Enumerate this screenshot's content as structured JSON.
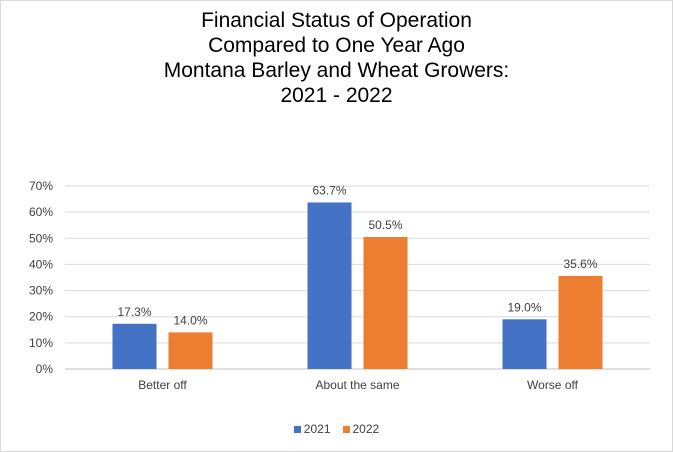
{
  "chart_data": {
    "type": "bar",
    "title_lines": [
      "Financial Status of Operation",
      "Compared to One Year Ago",
      "Montana Barley and Wheat Growers:",
      "2021 - 2022"
    ],
    "categories": [
      "Better off",
      "About the same",
      "Worse off"
    ],
    "series": [
      {
        "name": "2021",
        "color": "#4472c4",
        "values": [
          17.3,
          63.7,
          19.0
        ],
        "labels": [
          "17.3%",
          "63.7%",
          "19.0%"
        ]
      },
      {
        "name": "2022",
        "color": "#ed7d31",
        "values": [
          14.0,
          50.5,
          35.6
        ],
        "labels": [
          "14.0%",
          "50.5%",
          "35.6%"
        ]
      }
    ],
    "y_ticks": [
      "0%",
      "10%",
      "20%",
      "30%",
      "40%",
      "50%",
      "60%",
      "70%"
    ],
    "ylim": [
      0,
      70
    ],
    "grid": true,
    "legend_position": "bottom",
    "xlabel": "",
    "ylabel": ""
  }
}
